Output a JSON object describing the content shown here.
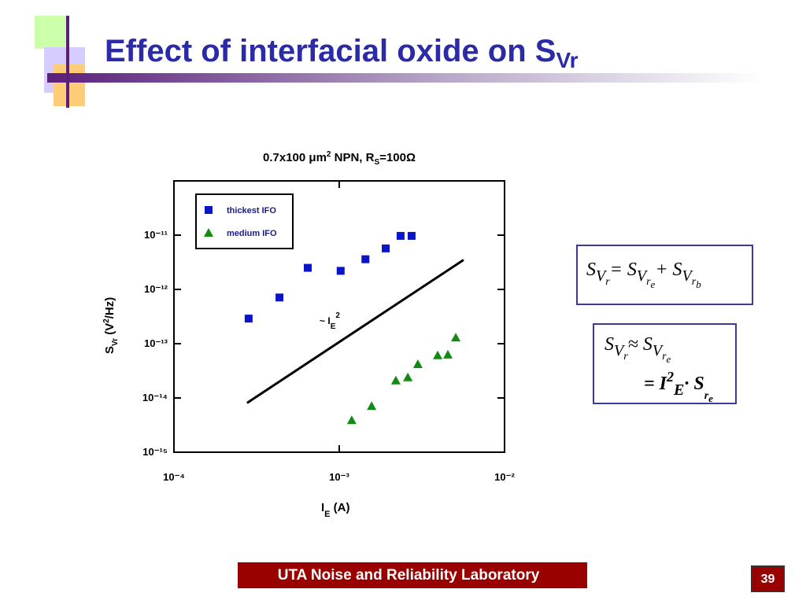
{
  "slide": {
    "title": "Effect of interfacial oxide on S",
    "title_sub": "Vr",
    "footer": "UTA Noise and Reliability Laboratory",
    "page": "39",
    "equation_1": [
      "S",
      "V",
      "r",
      "= S",
      "V",
      "r",
      "e",
      "+ S",
      "V",
      "r",
      "b"
    ],
    "equation_2": [
      "S",
      "V",
      "r",
      "≈ S",
      "V",
      "r",
      "e"
    ],
    "equation_3": [
      "= I",
      "2",
      "E",
      "· S",
      "r",
      "e"
    ]
  },
  "chart_data": {
    "type": "scatter",
    "title": [
      "0.7x100 μm",
      "2",
      " NPN, R",
      "S",
      "=100Ω"
    ],
    "xlabel": [
      "I",
      "E",
      " (A)"
    ],
    "ylabel": [
      "S",
      "Vr",
      " (V",
      "2",
      "/Hz)"
    ],
    "annotation": [
      "~ I",
      "E",
      "2"
    ],
    "log_x": true,
    "log_y": true,
    "xlim": [
      0.0001,
      0.01
    ],
    "xticks": [
      {
        "value": 0.0001,
        "label": "10⁻⁴"
      },
      {
        "value": 0.001,
        "label": "10⁻³"
      },
      {
        "value": 0.01,
        "label": "10⁻²"
      }
    ],
    "ylim": [
      1e-15,
      1e-10
    ],
    "yticks": [
      {
        "value": 1e-15,
        "label": "10⁻¹⁵"
      },
      {
        "value": 1e-14,
        "label": "10⁻¹⁴"
      },
      {
        "value": 1e-13,
        "label": "10⁻¹³"
      },
      {
        "value": 1e-12,
        "label": "10⁻¹²"
      },
      {
        "value": 1e-11,
        "label": "10⁻¹¹"
      }
    ],
    "series": [
      {
        "name": "thickest IFO",
        "color": "#0a14c8",
        "marker": "square",
        "x": [
          0.000283,
          0.000435,
          0.000645,
          0.00102,
          0.00144,
          0.00191,
          0.00235,
          0.00274
        ],
        "values": [
          2.9e-13,
          7.1e-13,
          2.5e-12,
          2.2e-12,
          3.6e-12,
          5.7e-12,
          9.7e-12,
          9.7e-12
        ]
      },
      {
        "name": "medium IFO",
        "color": "#138a13",
        "marker": "triangle",
        "x": [
          0.00119,
          0.00157,
          0.0022,
          0.0026,
          0.00299,
          0.00394,
          0.00454,
          0.00507
        ],
        "values": [
          3.9e-15,
          7.1e-15,
          2.1e-14,
          2.4e-14,
          4.2e-14,
          6.1e-14,
          6.3e-14,
          1.3e-13
        ]
      }
    ],
    "fit": {
      "color": "#000000",
      "x": [
        0.000277,
        0.00565
      ],
      "values": [
        8.1e-15,
        3.5e-12
      ]
    }
  }
}
